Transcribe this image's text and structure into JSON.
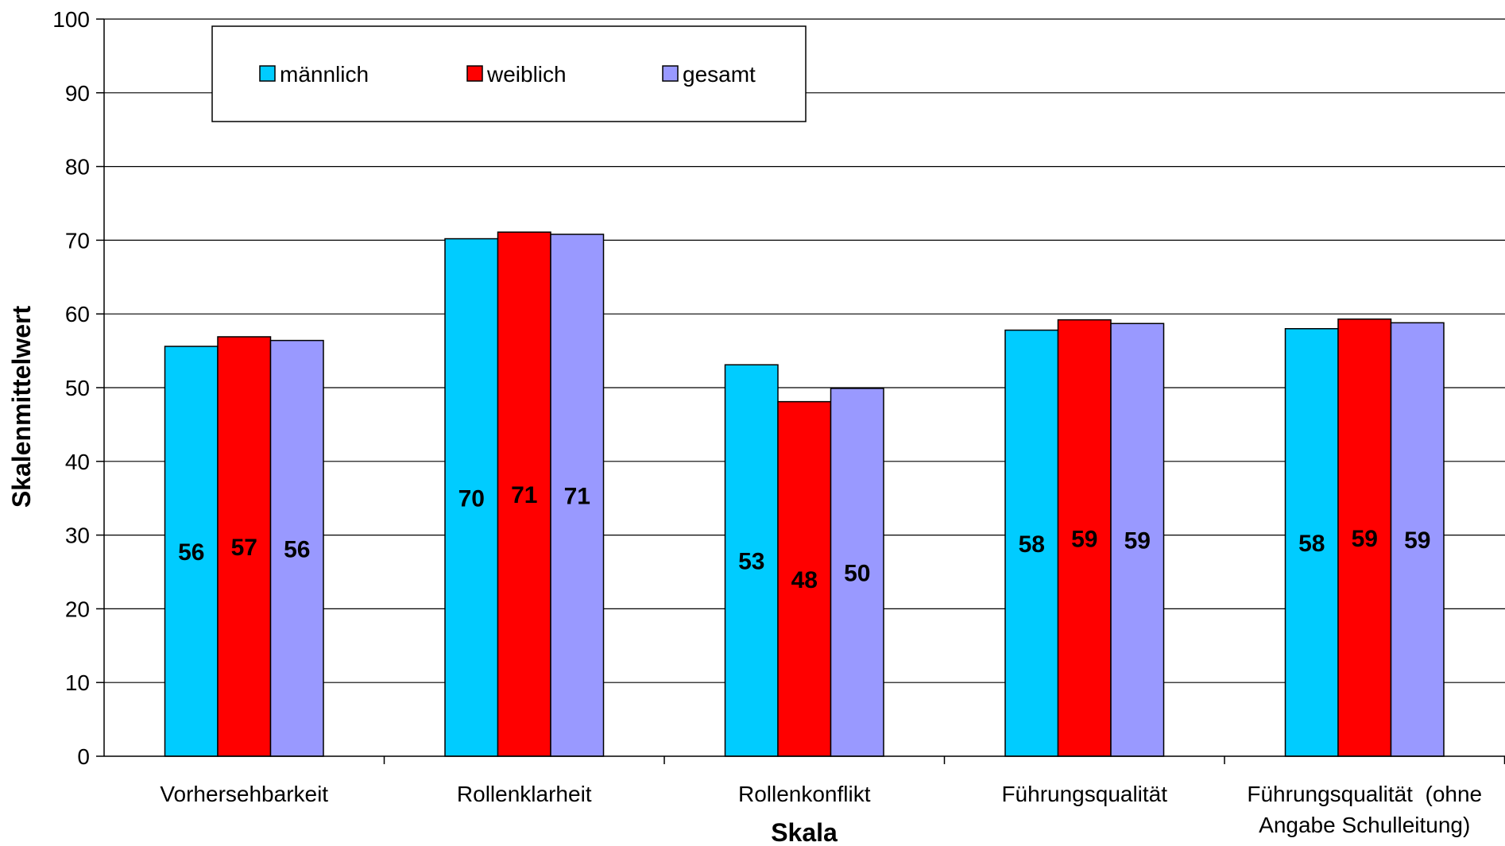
{
  "chart_data": {
    "type": "bar",
    "categories": [
      "Vorhersehbarkeit",
      "Rollenklarheit",
      "Rollenkonflikt",
      "Führungsqualität",
      [
        "Führungsqualität  (ohne",
        "Angabe Schulleitung)"
      ]
    ],
    "series": [
      {
        "name": "männlich",
        "color": "#00ccff",
        "values": [
          55.6,
          70.2,
          53.1,
          57.8,
          58.0
        ],
        "labels": [
          "56",
          "70",
          "53",
          "58",
          "58"
        ]
      },
      {
        "name": "weiblich",
        "color": "#ff0000",
        "values": [
          56.9,
          71.1,
          48.1,
          59.2,
          59.3
        ],
        "labels": [
          "57",
          "71",
          "48",
          "59",
          "59"
        ]
      },
      {
        "name": "gesamt",
        "color": "#9999ff",
        "values": [
          56.4,
          70.8,
          49.9,
          58.7,
          58.8
        ],
        "labels": [
          "56",
          "71",
          "50",
          "59",
          "59"
        ]
      }
    ],
    "xlabel": "Skala",
    "ylabel": "Skalenmittelwert",
    "ylim": [
      0,
      100
    ],
    "yticks": [
      "0",
      "10",
      "20",
      "30",
      "40",
      "50",
      "60",
      "70",
      "80",
      "90",
      "100"
    ],
    "grid": true,
    "legend": "top-left"
  }
}
